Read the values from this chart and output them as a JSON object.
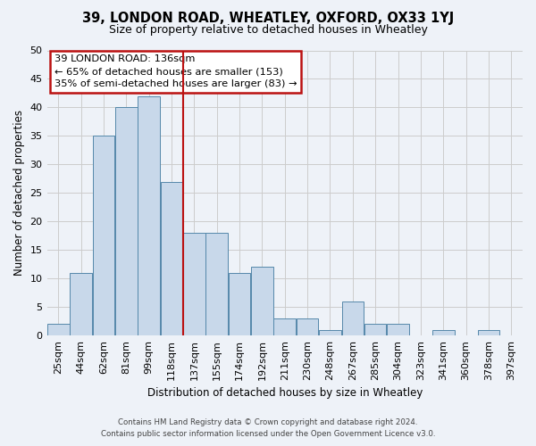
{
  "title": "39, LONDON ROAD, WHEATLEY, OXFORD, OX33 1YJ",
  "subtitle": "Size of property relative to detached houses in Wheatley",
  "xlabel": "Distribution of detached houses by size in Wheatley",
  "ylabel": "Number of detached properties",
  "footer_line1": "Contains HM Land Registry data © Crown copyright and database right 2024.",
  "footer_line2": "Contains public sector information licensed under the Open Government Licence v3.0.",
  "bar_labels": [
    "25sqm",
    "44sqm",
    "62sqm",
    "81sqm",
    "99sqm",
    "118sqm",
    "137sqm",
    "155sqm",
    "174sqm",
    "192sqm",
    "211sqm",
    "230sqm",
    "248sqm",
    "267sqm",
    "285sqm",
    "304sqm",
    "323sqm",
    "341sqm",
    "360sqm",
    "378sqm",
    "397sqm"
  ],
  "bar_values": [
    2,
    11,
    35,
    40,
    42,
    27,
    18,
    18,
    11,
    12,
    3,
    3,
    1,
    6,
    2,
    2,
    0,
    1,
    0,
    1,
    0
  ],
  "bar_color": "#c8d8ea",
  "bar_edge_color": "#5588aa",
  "grid_color": "#cccccc",
  "background_color": "#eef2f8",
  "annotation_box_color": "#bb1111",
  "vline_color": "#bb1111",
  "vline_x": 5.5,
  "annotation_title": "39 LONDON ROAD: 136sqm",
  "annotation_line1": "← 65% of detached houses are smaller (153)",
  "annotation_line2": "35% of semi-detached houses are larger (83) →",
  "ylim": [
    0,
    50
  ],
  "yticks": [
    0,
    5,
    10,
    15,
    20,
    25,
    30,
    35,
    40,
    45,
    50
  ]
}
